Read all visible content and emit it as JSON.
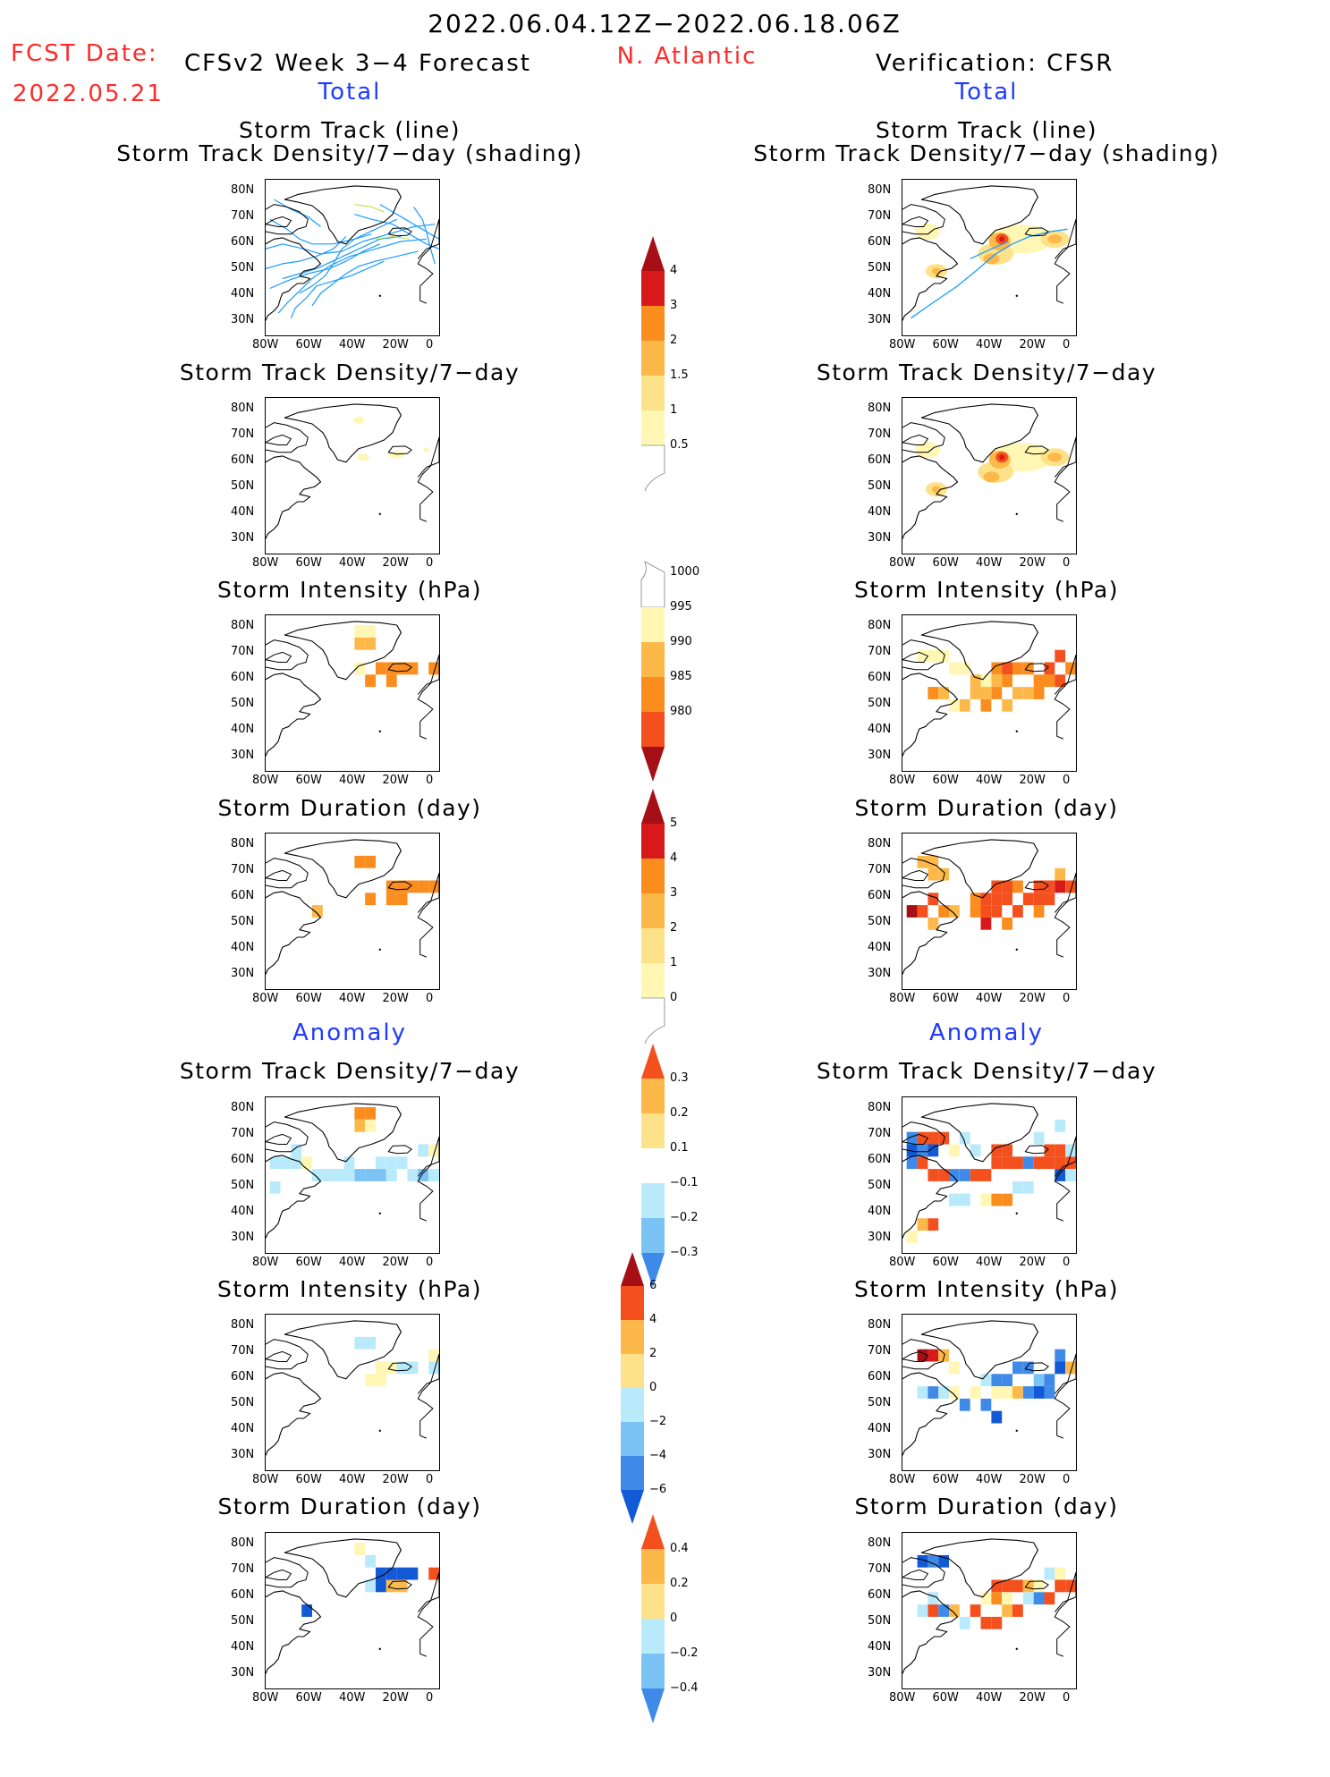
{
  "header": {
    "date_range": "2022.06.04.12Z−2022.06.18.06Z",
    "fcst_date_label": "FCST Date:",
    "fcst_date_value": "2022.05.21",
    "forecast_title": "CFSv2 Week 3−4 Forecast",
    "region": "N. Atlantic",
    "verification_title": "Verification: CFSR",
    "total_left": "Total",
    "total_right": "Total",
    "anomaly_left": "Anomaly",
    "anomaly_right": "Anomaly"
  },
  "panel_titles": {
    "track_line": "Storm Track (line)",
    "track_density_shading": "Storm Track Density/7−day (shading)",
    "track_density": "Storm Track Density/7−day",
    "intensity": "Storm Intensity (hPa)",
    "duration": "Storm Duration (day)"
  },
  "axes": {
    "lat_ticks": [
      "80N",
      "70N",
      "60N",
      "50N",
      "40N",
      "30N"
    ],
    "lon_ticks": [
      "80W",
      "60W",
      "40W",
      "20W",
      "0"
    ]
  },
  "colorbars": {
    "density_total": [
      "4",
      "3",
      "2",
      "1.5",
      "1",
      "0.5"
    ],
    "intensity_total": [
      "1000",
      "995",
      "990",
      "985",
      "980"
    ],
    "duration_total": [
      "5",
      "4",
      "3",
      "2",
      "1",
      "0"
    ],
    "density_anom": [
      "0.3",
      "0.2",
      "0.1",
      "−0.1",
      "−0.2",
      "−0.3"
    ],
    "intensity_anom": [
      "6",
      "4",
      "2",
      "0",
      "−2",
      "−4",
      "−6"
    ],
    "duration_anom": [
      "0.4",
      "0.2",
      "0",
      "−0.2",
      "−0.4"
    ]
  },
  "colors": {
    "title_red": "#ff2a2a",
    "label_blue": "#1f3bff",
    "track_line": "#1a9cff"
  }
}
